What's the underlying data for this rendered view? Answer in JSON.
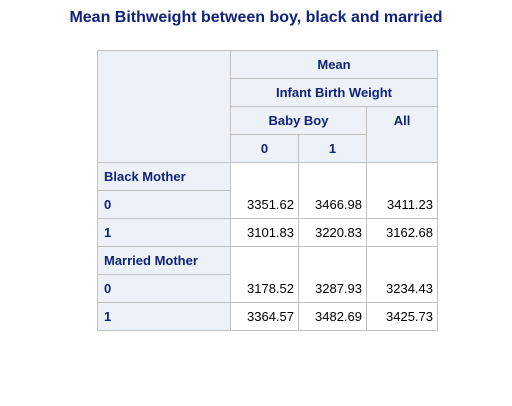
{
  "title": "Mean Bithweight between boy, black and married",
  "table": {
    "header_mean": "Mean",
    "header_variable": "Infant Birth Weight",
    "header_group": "Baby Boy",
    "header_all": "All",
    "header_levels": [
      "0",
      "1"
    ],
    "groups": [
      {
        "label": "Black Mother",
        "rows": [
          {
            "label": "0",
            "values": [
              "3351.62",
              "3466.98",
              "3411.23"
            ]
          },
          {
            "label": "1",
            "values": [
              "3101.83",
              "3220.83",
              "3162.68"
            ]
          }
        ]
      },
      {
        "label": "Married Mother",
        "rows": [
          {
            "label": "0",
            "values": [
              "3178.52",
              "3287.93",
              "3234.43"
            ]
          },
          {
            "label": "1",
            "values": [
              "3364.57",
              "3482.69",
              "3425.73"
            ]
          }
        ]
      }
    ]
  }
}
